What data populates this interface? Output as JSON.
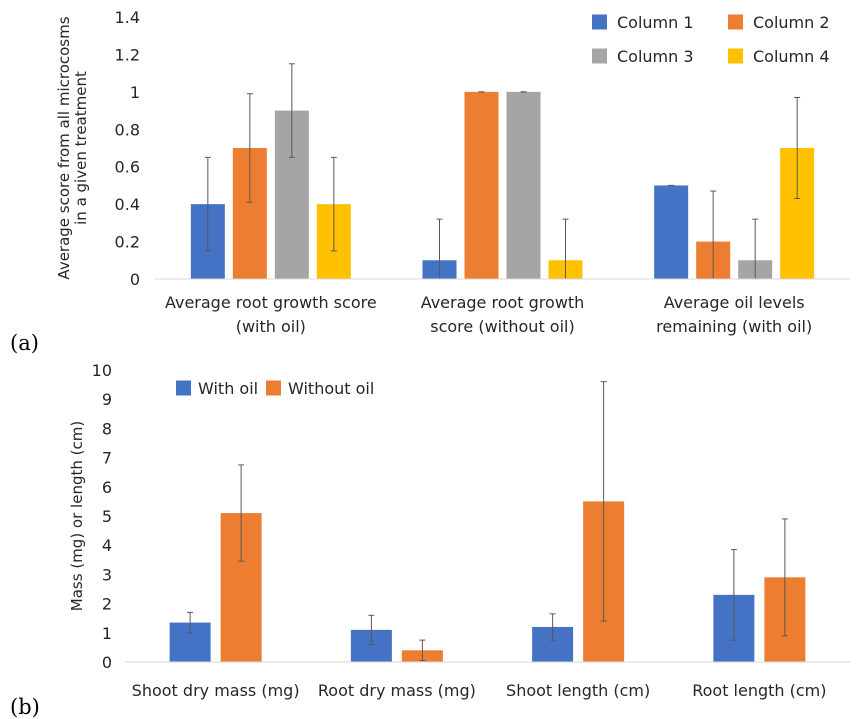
{
  "panels": [
    {
      "label": "(a)",
      "chart_data": {
        "type": "bar",
        "categories": [
          [
            "Average root growth score",
            "(with oil)"
          ],
          [
            "Average root growth",
            "score (without oil)"
          ],
          [
            "Average oil levels",
            "remaining (with oil)"
          ]
        ],
        "ylabel": [
          "Average score from all microcosms",
          "in a given treatment"
        ],
        "xlabel": "",
        "ylim": [
          0,
          1.4
        ],
        "yticks": [
          0,
          0.2,
          0.4,
          0.6,
          0.8,
          1,
          1.2,
          1.4
        ],
        "grid": false,
        "legend": "top-right",
        "series": [
          {
            "name": "Column 1",
            "color": "#4472C4",
            "values": [
              0.4,
              0.1,
              0.5
            ],
            "errors": [
              0.25,
              0.22,
              0.0
            ]
          },
          {
            "name": "Column 2",
            "color": "#ED7D31",
            "values": [
              0.7,
              1.0,
              0.2
            ],
            "errors": [
              0.29,
              0.0,
              0.27
            ]
          },
          {
            "name": "Column 3",
            "color": "#A5A5A5",
            "values": [
              0.9,
              1.0,
              0.1
            ],
            "errors": [
              0.25,
              0.0,
              0.22
            ]
          },
          {
            "name": "Column 4",
            "color": "#FFC000",
            "values": [
              0.4,
              0.1,
              0.7
            ],
            "errors": [
              0.25,
              0.22,
              0.27
            ]
          }
        ]
      }
    },
    {
      "label": "(b)",
      "chart_data": {
        "type": "bar",
        "categories": [
          [
            "Shoot dry mass (mg)"
          ],
          [
            "Root dry mass (mg)"
          ],
          [
            "Shoot length (cm)"
          ],
          [
            "Root length (cm)"
          ]
        ],
        "ylabel": [
          "Mass (mg) or length (cm)"
        ],
        "xlabel": "",
        "ylim": [
          0,
          10
        ],
        "yticks": [
          0,
          1,
          2,
          3,
          4,
          5,
          6,
          7,
          8,
          9,
          10
        ],
        "grid": false,
        "legend": "top-left",
        "series": [
          {
            "name": "With oil",
            "color": "#4472C4",
            "values": [
              1.35,
              1.1,
              1.2,
              2.3
            ],
            "errors": [
              0.35,
              0.5,
              0.45,
              1.55
            ]
          },
          {
            "name": "Without oil",
            "color": "#ED7D31",
            "values": [
              5.1,
              0.4,
              5.5,
              2.9
            ],
            "errors": [
              1.65,
              0.35,
              4.1,
              2.0
            ]
          }
        ]
      }
    }
  ]
}
